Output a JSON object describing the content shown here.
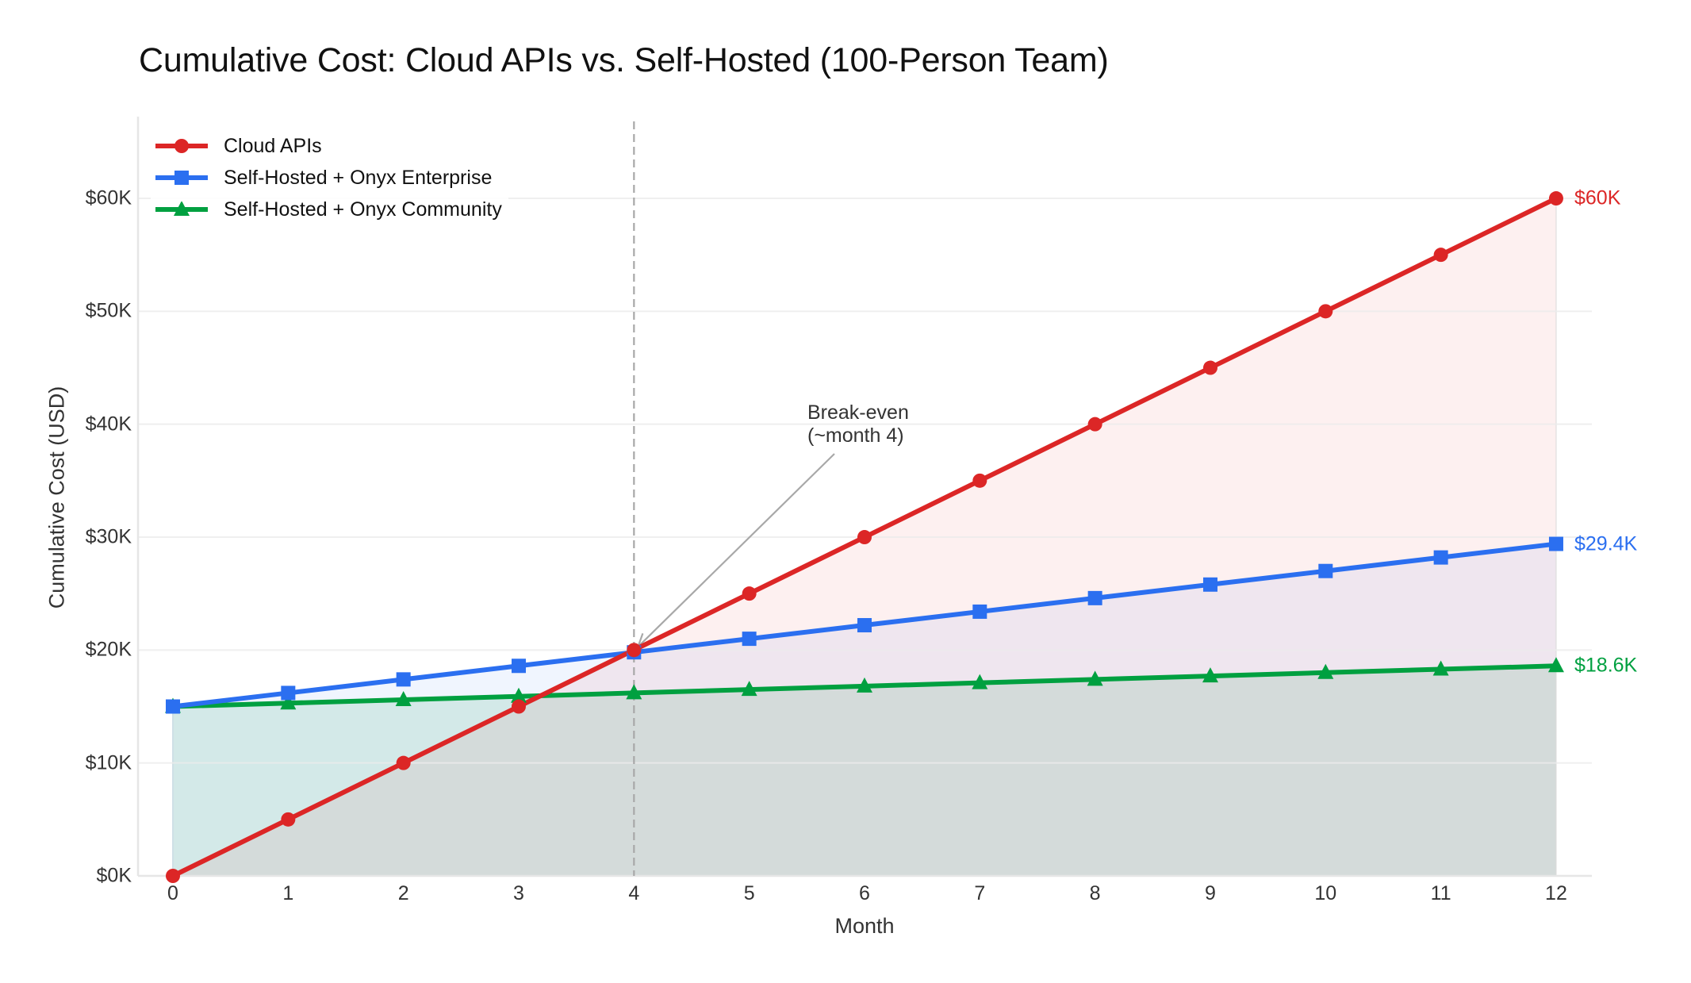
{
  "chart_data": {
    "type": "line",
    "title": "Cumulative Cost: Cloud APIs vs. Self-Hosted (100-Person Team)",
    "xlabel": "Month",
    "ylabel": "Cumulative Cost (USD)",
    "x": [
      0,
      1,
      2,
      3,
      4,
      5,
      6,
      7,
      8,
      9,
      10,
      11,
      12
    ],
    "x_tick_labels": [
      "0",
      "1",
      "2",
      "3",
      "4",
      "5",
      "6",
      "7",
      "8",
      "9",
      "10",
      "11",
      "12"
    ],
    "y_ticks": [
      0,
      10000,
      20000,
      30000,
      40000,
      50000,
      60000
    ],
    "y_tick_labels": [
      "$0K",
      "$10K",
      "$20K",
      "$30K",
      "$40K",
      "$50K",
      "$60K"
    ],
    "xlim": [
      -0.3,
      12.3
    ],
    "ylim": [
      0,
      67000
    ],
    "grid": "horizontal",
    "legend_position": "upper left",
    "series": [
      {
        "name": "Cloud APIs",
        "color": "#dc2626",
        "marker": "circle",
        "values": [
          0,
          5000,
          10000,
          15000,
          20000,
          25000,
          30000,
          35000,
          40000,
          45000,
          50000,
          55000,
          60000
        ],
        "end_label": "$60K",
        "fill": true
      },
      {
        "name": "Self-Hosted + Onyx Enterprise",
        "color": "#2b6ff0",
        "marker": "square",
        "values": [
          15000,
          16200,
          17400,
          18600,
          19800,
          21000,
          22200,
          23400,
          24600,
          25800,
          27000,
          28200,
          29400
        ],
        "end_label": "$29.4K",
        "fill": true
      },
      {
        "name": "Self-Hosted + Onyx Community",
        "color": "#00a040",
        "marker": "triangle",
        "values": [
          15000,
          15300,
          15600,
          15900,
          16200,
          16500,
          16800,
          17100,
          17400,
          17700,
          18000,
          18300,
          18600
        ],
        "end_label": "$18.6K",
        "fill": true
      }
    ],
    "annotations": [
      {
        "text_lines": [
          "Break-even",
          "(~month 4)"
        ],
        "arrow_to": {
          "x": 4,
          "y": 20000
        },
        "vline_x": 4
      }
    ]
  }
}
